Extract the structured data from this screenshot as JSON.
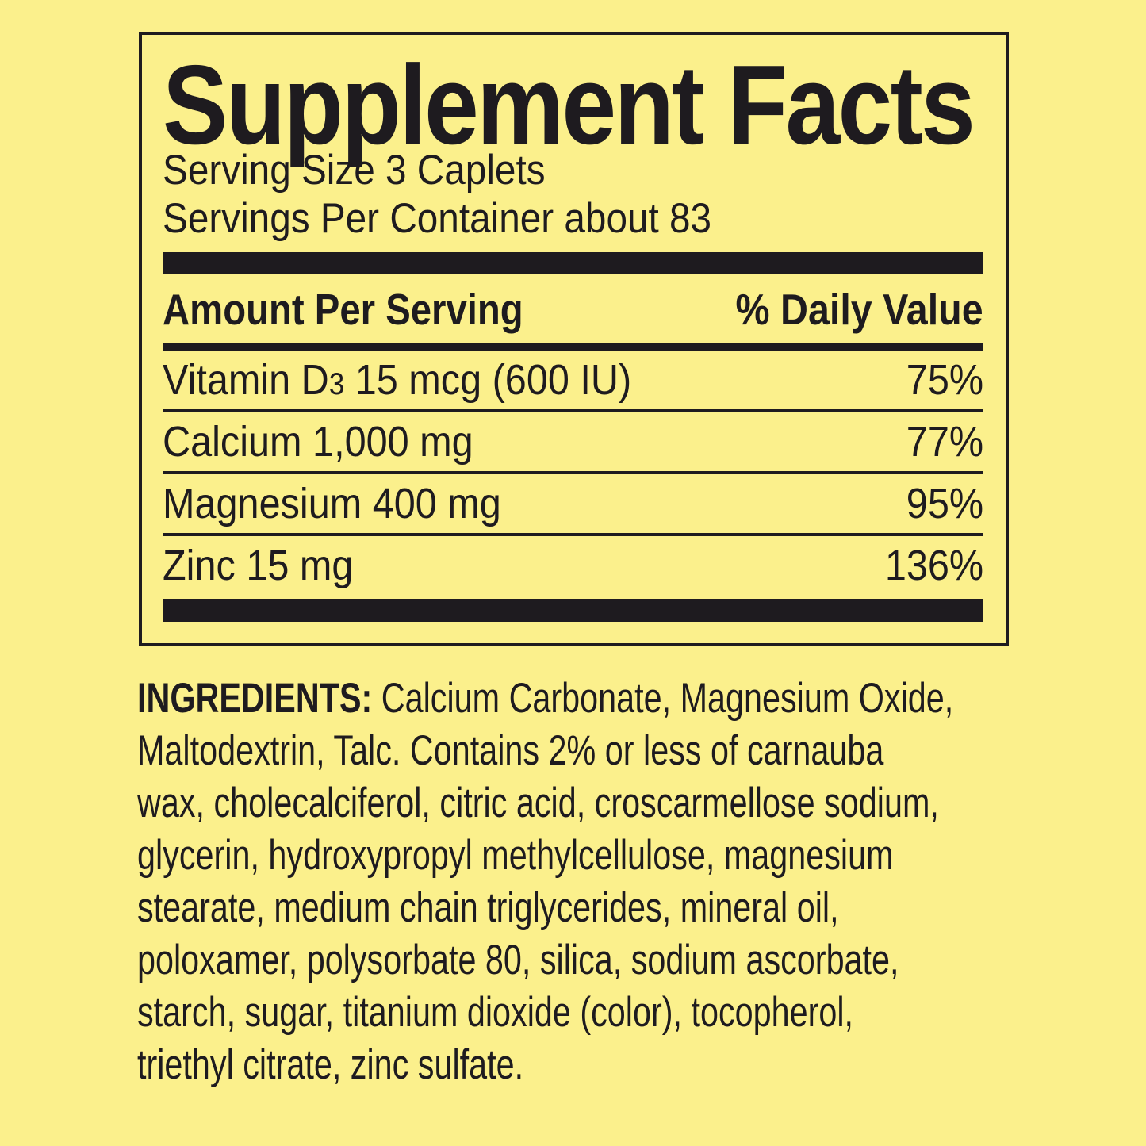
{
  "label": {
    "title": "Supplement Facts",
    "serving": {
      "size": "Serving Size 3 Caplets",
      "per_container": "Servings Per Container about 83"
    },
    "table": {
      "amount_header": "Amount Per Serving",
      "dv_header": "% Daily Value",
      "rows": [
        {
          "name_pre": "Vitamin D",
          "name_sub": "3",
          "name_post": " 15 mcg (600 IU)",
          "daily_value": "75%"
        },
        {
          "name_pre": "Calcium 1,000 mg",
          "name_sub": "",
          "name_post": "",
          "daily_value": "77%"
        },
        {
          "name_pre": "Magnesium 400 mg",
          "name_sub": "",
          "name_post": "",
          "daily_value": "95%"
        },
        {
          "name_pre": "Zinc 15 mg",
          "name_sub": "",
          "name_post": "",
          "daily_value": "136%"
        }
      ]
    },
    "ingredients": {
      "label": "INGREDIENTS:",
      "lines": [
        " Calcium Carbonate, Magnesium Oxide,",
        "Maltodextrin, Talc. Contains 2% or less of carnauba",
        "wax, cholecalciferol, citric acid, croscarmellose sodium,",
        "glycerin, hydroxypropyl methylcellulose, magnesium",
        "stearate, medium chain triglycerides, mineral oil,",
        "poloxamer, polysorbate 80, silica, sodium ascorbate,",
        "starch, sugar, titanium dioxide (color), tocopherol,",
        "triethyl citrate, zinc sulfate."
      ]
    },
    "colors": {
      "background": "#FBF08C",
      "ink": "#1E1B1F"
    }
  }
}
